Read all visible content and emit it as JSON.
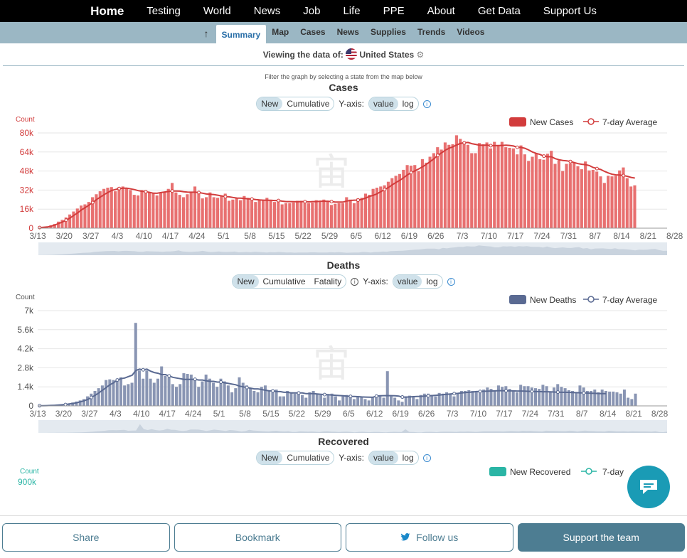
{
  "nav": {
    "home": "Home",
    "items": [
      "Testing",
      "World",
      "News",
      "Job",
      "Life",
      "PPE",
      "About",
      "Get Data",
      "Support Us"
    ]
  },
  "subnav": {
    "up": "↑",
    "tabs": [
      "Summary",
      "Map",
      "Cases",
      "News",
      "Supplies",
      "Trends",
      "Videos"
    ],
    "active": "Summary"
  },
  "viewing": {
    "label": "Viewing the data of:",
    "country": "United States",
    "gear": "⚙"
  },
  "hint": "Filter the graph by selecting a state from the map below",
  "controls": {
    "yaxis": "Y-axis:",
    "value": "value",
    "log": "log",
    "new": "New",
    "cumulative": "Cumulative",
    "fatality": "Fatality"
  },
  "bottom": {
    "share": "Share",
    "bookmark": "Bookmark",
    "follow": "Follow us",
    "support": "Support the team"
  },
  "colors": {
    "cases": "#e87070",
    "casesLine": "#d23c3c",
    "deaths": "#8995b3",
    "deathsLine": "#5a6a92",
    "recovered": "#2ab5a5"
  },
  "chart_data": [
    {
      "type": "bar",
      "title": "Cases",
      "ylabel": "Count",
      "legend": [
        "New Cases",
        "7-day Average"
      ],
      "ylim": [
        0,
        80000
      ],
      "yticks": [
        "0",
        "16k",
        "32k",
        "48k",
        "64k",
        "80k"
      ],
      "xticks": [
        "3/13",
        "3/20",
        "3/27",
        "4/3",
        "4/10",
        "4/17",
        "4/24",
        "5/1",
        "5/8",
        "5/15",
        "5/22",
        "5/29",
        "6/5",
        "6/12",
        "6/19",
        "6/26",
        "7/3",
        "7/10",
        "7/17",
        "7/24",
        "7/31",
        "8/7",
        "8/14",
        "8/21",
        "8/28"
      ],
      "values": [
        500,
        800,
        1200,
        2500,
        3500,
        5500,
        7000,
        9000,
        11500,
        14000,
        16500,
        19000,
        20000,
        22000,
        26000,
        28500,
        31000,
        33000,
        34000,
        34500,
        31000,
        34500,
        35000,
        34000,
        32000,
        28000,
        27500,
        32000,
        31000,
        30000,
        29000,
        27500,
        29500,
        30000,
        33000,
        38000,
        30000,
        28000,
        26000,
        28500,
        30000,
        35000,
        29000,
        25000,
        26000,
        30000,
        26000,
        25500,
        27000,
        29000,
        23000,
        24000,
        25500,
        23500,
        27000,
        25500,
        23500,
        22000,
        24000,
        23000,
        25500,
        23500,
        22000,
        22500,
        20000,
        21000,
        21000,
        21500,
        23000,
        23000,
        22000,
        21000,
        21500,
        23500,
        22500,
        24000,
        22500,
        19500,
        20500,
        21000,
        21000,
        26000,
        24000,
        21000,
        25000,
        25500,
        29000,
        28000,
        33000,
        34000,
        35000,
        36000,
        39000,
        42000,
        44000,
        45500,
        49000,
        53000,
        52500,
        53000,
        48000,
        58000,
        55000,
        60000,
        63000,
        68000,
        66000,
        72000,
        70000,
        70500,
        78000,
        75000,
        72000,
        70000,
        63000,
        63000,
        71500,
        70500,
        72000,
        67000,
        72500,
        69500,
        72500,
        68000,
        67500,
        67000,
        62000,
        69500,
        62000,
        56500,
        60000,
        63000,
        58000,
        57500,
        62500,
        65000,
        54000,
        57000,
        48000,
        54000,
        54500,
        55000,
        52000,
        49500,
        56000,
        48500,
        49000,
        47500,
        43500,
        38000,
        44000,
        43500,
        44000,
        48500,
        51000,
        42000,
        35000,
        36000
      ],
      "avg": [
        500,
        700,
        1000,
        1600,
        2600,
        3900,
        5200,
        6700,
        8500,
        10600,
        12800,
        15200,
        17200,
        19300,
        21500,
        24000,
        26100,
        28200,
        29900,
        31700,
        32500,
        33300,
        33600,
        33600,
        33000,
        32400,
        31500,
        31000,
        30700,
        30100,
        29400,
        29300,
        29900,
        30400,
        30800,
        31200,
        31200,
        31100,
        30600,
        30300,
        30200,
        30200,
        29900,
        29400,
        28700,
        28400,
        28200,
        27700,
        27100,
        26500,
        26300,
        25800,
        25300,
        25200,
        25000,
        24600,
        24500,
        24000,
        23700,
        23500,
        23400,
        23400,
        23200,
        23200,
        22700,
        22300,
        22300,
        22200,
        22200,
        22300,
        22300,
        22100,
        22300,
        22300,
        22600,
        22600,
        22600,
        22300,
        22000,
        21900,
        21900,
        22800,
        23300,
        23500,
        23600,
        24200,
        25300,
        26700,
        27600,
        28900,
        30700,
        32500,
        34100,
        36400,
        38400,
        40200,
        42300,
        44700,
        46700,
        48200,
        49800,
        51500,
        53600,
        55900,
        58300,
        61100,
        63300,
        65400,
        67200,
        68300,
        69900,
        71200,
        71700,
        72000,
        71000,
        70400,
        69700,
        69600,
        69800,
        69300,
        69300,
        69400,
        69500,
        69700,
        69500,
        69000,
        67900,
        67800,
        67100,
        65700,
        64000,
        62800,
        61900,
        60500,
        60000,
        60000,
        58400,
        57500,
        56900,
        56600,
        56000,
        55100,
        54200,
        53700,
        53400,
        52600,
        51000,
        50100,
        49300,
        47700,
        46400,
        45300,
        44800,
        44600,
        44200,
        43600,
        42600,
        42100
      ]
    },
    {
      "type": "bar",
      "title": "Deaths",
      "ylabel": "Count",
      "legend": [
        "New Deaths",
        "7-day Average"
      ],
      "ylim": [
        0,
        7000
      ],
      "yticks": [
        "0",
        "1.4k",
        "2.8k",
        "4.2k",
        "5.6k",
        "7k"
      ],
      "xticks": [
        "3/13",
        "3/20",
        "3/27",
        "4/3",
        "4/10",
        "4/17",
        "4/24",
        "5/1",
        "5/8",
        "5/15",
        "5/22",
        "5/29",
        "6/5",
        "6/12",
        "6/19",
        "6/26",
        "7/3",
        "7/10",
        "7/17",
        "7/24",
        "7/31",
        "8/7",
        "8/14",
        "8/21",
        "8/28"
      ],
      "values": [
        10,
        15,
        20,
        30,
        50,
        80,
        100,
        130,
        180,
        250,
        320,
        400,
        500,
        700,
        900,
        1100,
        1300,
        1500,
        1900,
        1950,
        1900,
        2000,
        2100,
        1500,
        1600,
        1700,
        6100,
        2600,
        2000,
        2600,
        2000,
        1700,
        2000,
        2900,
        2200,
        2100,
        1600,
        1400,
        1600,
        2400,
        2350,
        2300,
        1900,
        1400,
        1800,
        2300,
        2000,
        1700,
        1400,
        2000,
        1800,
        1500,
        1000,
        1300,
        2100,
        1700,
        1500,
        1300,
        1100,
        1000,
        1400,
        1500,
        1100,
        1000,
        1200,
        700,
        700,
        1100,
        1000,
        900,
        1000,
        800,
        600,
        1000,
        1100,
        900,
        800,
        600,
        800,
        900,
        700,
        400,
        700,
        800,
        600,
        500,
        700,
        700,
        500,
        400,
        600,
        750,
        700,
        600,
        2550,
        700,
        600,
        400,
        300,
        700,
        750,
        700,
        500,
        800,
        900,
        900,
        800,
        700,
        950,
        900,
        1000,
        850,
        700,
        900,
        1100,
        1100,
        1150,
        1100,
        1100,
        1000,
        1200,
        1350,
        1250,
        1150,
        1500,
        1400,
        1450,
        1250,
        1150,
        1000,
        1550,
        1450,
        1450,
        1350,
        1300,
        1250,
        1550,
        1450,
        1000,
        1350,
        1600,
        1400,
        1300,
        1150,
        1100,
        1000,
        1500,
        1350,
        1100,
        1100,
        1200,
        1000,
        1200,
        1100,
        1050,
        1050,
        1000,
        900,
        1200,
        600,
        500,
        900
      ],
      "avg": [
        10,
        15,
        20,
        30,
        40,
        60,
        80,
        100,
        140,
        180,
        230,
        300,
        370,
        470,
        620,
        780,
        950,
        1150,
        1350,
        1550,
        1700,
        1900,
        2000,
        2050,
        2150,
        2250,
        2600,
        2700,
        2650,
        2700,
        2550,
        2450,
        2400,
        2300,
        2300,
        2200,
        2100,
        2050,
        2000,
        1950,
        1950,
        1950,
        1950,
        1900,
        1900,
        1850,
        1800,
        1800,
        1750,
        1750,
        1700,
        1650,
        1600,
        1550,
        1450,
        1400,
        1350,
        1300,
        1250,
        1250,
        1200,
        1150,
        1100,
        1100,
        1050,
        1050,
        1000,
        1000,
        950,
        950,
        950,
        950,
        900,
        900,
        900,
        880,
        850,
        830,
        820,
        800,
        780,
        760,
        740,
        720,
        700,
        690,
        680,
        660,
        650,
        640,
        630,
        720,
        740,
        750,
        760,
        750,
        740,
        720,
        650,
        650,
        660,
        680,
        690,
        700,
        720,
        740,
        760,
        780,
        800,
        830,
        850,
        880,
        900,
        920,
        950,
        980,
        1000,
        1020,
        1050,
        1060,
        1070,
        1080,
        1090,
        1100,
        1120,
        1120,
        1110,
        1100,
        1100,
        1090,
        1090,
        1080,
        1070,
        1060,
        1050,
        1050,
        1040,
        1040,
        1030,
        1020,
        1010,
        1000,
        1000,
        990,
        980,
        970,
        960,
        950,
        940,
        930,
        920,
        910,
        900,
        900
      ],
      "spike_label": ""
    },
    {
      "type": "bar",
      "title": "Recovered",
      "ylabel": "Count",
      "legend": [
        "New Recovered",
        "7-day"
      ],
      "yticks": [
        "900k"
      ]
    }
  ]
}
